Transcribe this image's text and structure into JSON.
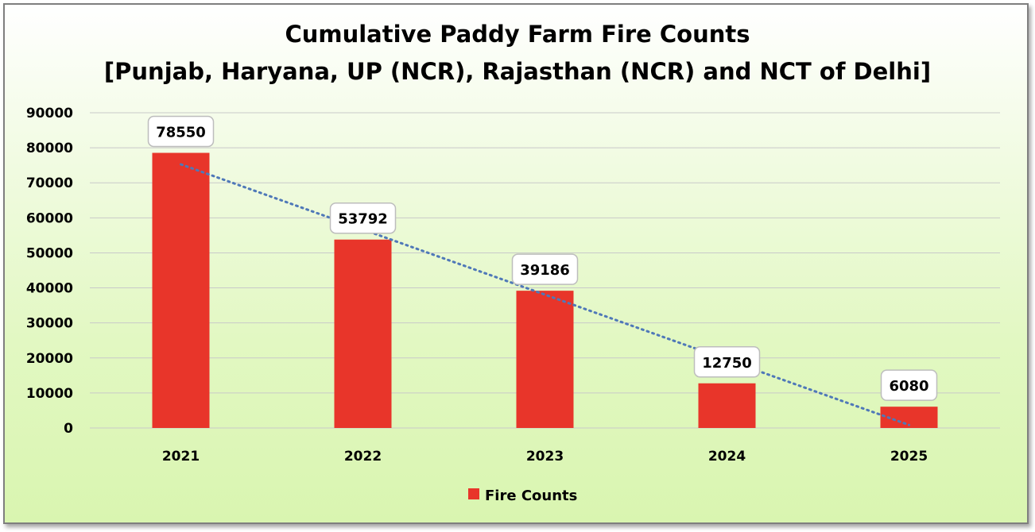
{
  "chart_data": {
    "type": "bar",
    "title": "Cumulative Paddy Farm Fire Counts",
    "subtitle": "[Punjab, Haryana, UP (NCR), Rajasthan (NCR) and NCT of Delhi]",
    "categories": [
      "2021",
      "2022",
      "2023",
      "2024",
      "2025"
    ],
    "series": [
      {
        "name": "Fire Counts",
        "values": [
          78550,
          53792,
          39186,
          12750,
          6080
        ],
        "color": "#e8352a"
      }
    ],
    "ylim": [
      0,
      90000
    ],
    "yticks": [
      "0",
      "10000",
      "20000",
      "30000",
      "40000",
      "50000",
      "60000",
      "70000",
      "80000",
      "90000"
    ],
    "data_labels": [
      "78550",
      "53792",
      "39186",
      "12750",
      "6080"
    ],
    "trendline": {
      "type": "linear",
      "style": "dotted",
      "color": "#4f78b8"
    },
    "grid": true,
    "legend_position": "bottom",
    "xlabel": "",
    "ylabel": ""
  }
}
